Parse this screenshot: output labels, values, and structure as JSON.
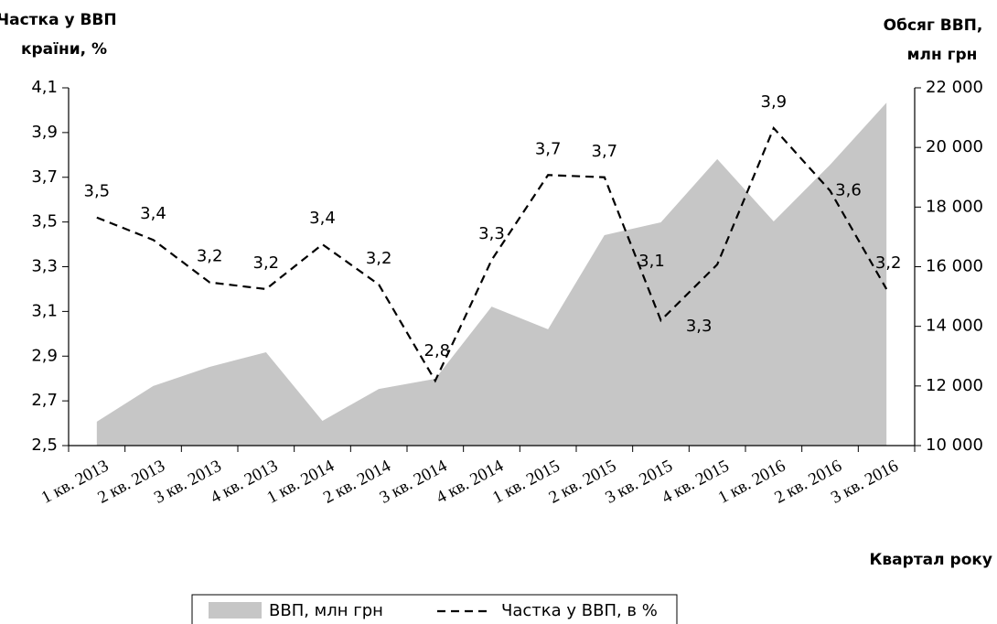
{
  "chart_data": {
    "type": "combo",
    "ylabel": [
      "Частка у ВВП",
      "країни, %"
    ],
    "y2label": [
      "Обсяг ВВП,",
      "млн грн"
    ],
    "xlabel": "Квартал  року",
    "categories": [
      "1 кв. 2013",
      "2 кв. 2013",
      "3 кв. 2013",
      "4 кв. 2013",
      "1 кв. 2014",
      "2 кв. 2014",
      "3 кв. 2014",
      "4 кв. 2014",
      "1 кв. 2015",
      "2 кв. 2015",
      "3 кв. 2015",
      "4 кв. 2015",
      "1 кв. 2016",
      "2 кв. 2016",
      "3 кв. 2016"
    ],
    "series": [
      {
        "name": "ВВП, млн грн",
        "type": "area",
        "axis": "y2",
        "color": "#c6c6c6",
        "values": [
          10800,
          12000,
          12640,
          13130,
          10830,
          11900,
          12240,
          14660,
          13900,
          17060,
          17490,
          19610,
          17520,
          19420,
          21500
        ]
      },
      {
        "name": "Частка у ВВП, в %",
        "type": "line",
        "axis": "y",
        "color": "#000000",
        "dashed": true,
        "values": [
          3.52,
          3.42,
          3.23,
          3.2,
          3.4,
          3.22,
          2.79,
          3.33,
          3.71,
          3.7,
          3.06,
          3.31,
          3.92,
          3.64,
          3.2
        ],
        "value_labels": [
          "3,5",
          "3,4",
          "3,2",
          "3,2",
          "3,4",
          "3,2",
          "2,8",
          "3,3",
          "3,7",
          "3,7",
          "3,1",
          "3,3",
          "3,9",
          "3,6",
          "3,2"
        ]
      }
    ],
    "ylim": [
      2.5,
      4.1
    ],
    "yticks": [
      {
        "value": 2.5,
        "label": "2,5"
      },
      {
        "value": 2.7,
        "label": "2,7"
      },
      {
        "value": 2.9,
        "label": "2,9"
      },
      {
        "value": 3.1,
        "label": "3,1"
      },
      {
        "value": 3.3,
        "label": "3,3"
      },
      {
        "value": 3.5,
        "label": "3,5"
      },
      {
        "value": 3.7,
        "label": "3,7"
      },
      {
        "value": 3.9,
        "label": "3,9"
      },
      {
        "value": 4.1,
        "label": "4,1"
      }
    ],
    "y2lim": [
      10000,
      22000
    ],
    "y2ticks": [
      {
        "value": 10000,
        "label": "10 000"
      },
      {
        "value": 12000,
        "label": "12 000"
      },
      {
        "value": 14000,
        "label": "14 000"
      },
      {
        "value": 16000,
        "label": "16 000"
      },
      {
        "value": 18000,
        "label": "18 000"
      },
      {
        "value": 20000,
        "label": "20 000"
      },
      {
        "value": 22000,
        "label": "22 000"
      }
    ],
    "legend": "bottom"
  }
}
